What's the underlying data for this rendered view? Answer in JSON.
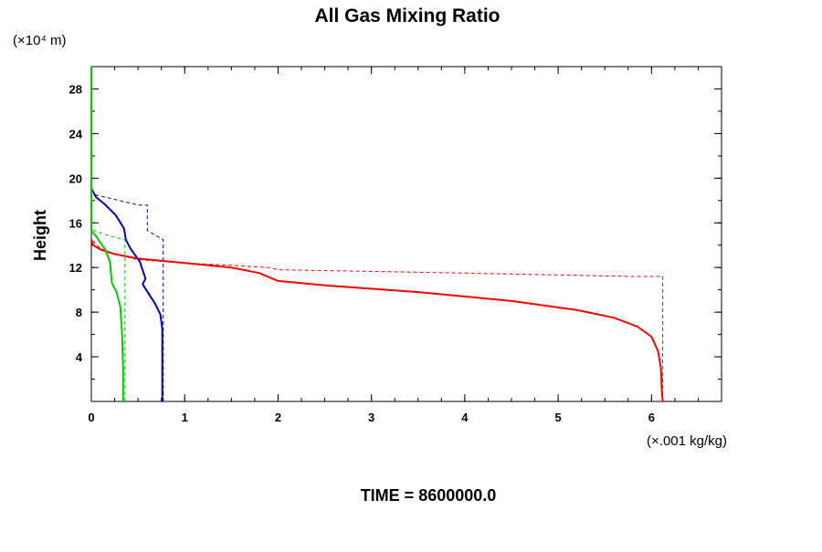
{
  "chart_data": {
    "type": "line",
    "title": "All Gas Mixing Ratio",
    "ylabel": "Height",
    "yunit": "(×10⁴ m)",
    "xunit": "(×.001 kg/kg)",
    "footer": "TIME = 8600000.0",
    "xlim": [
      0,
      6.75
    ],
    "ylim": [
      0,
      30
    ],
    "xticks": [
      0,
      1,
      2,
      3,
      4,
      5,
      6
    ],
    "yticks": [
      4,
      8,
      12,
      16,
      20,
      24,
      28
    ],
    "xtick_labels": [
      "0",
      "1",
      "2",
      "3",
      "4",
      "5",
      "6"
    ],
    "ytick_labels": [
      "4",
      "8",
      "12",
      "16",
      "20",
      "24",
      "28"
    ],
    "x_minor_step": 0.25,
    "y_minor_step": 2,
    "series": [
      {
        "name": "red-solid",
        "color": "#ff0000",
        "style": "solid",
        "points": [
          [
            6.12,
            0
          ],
          [
            6.11,
            1
          ],
          [
            6.1,
            3
          ],
          [
            6.07,
            4.5
          ],
          [
            6.0,
            5.8
          ],
          [
            5.85,
            6.7
          ],
          [
            5.6,
            7.5
          ],
          [
            5.2,
            8.2
          ],
          [
            4.5,
            9.0
          ],
          [
            3.5,
            9.8
          ],
          [
            2.5,
            10.4
          ],
          [
            2.0,
            10.8
          ],
          [
            1.8,
            11.5
          ],
          [
            1.5,
            12.0
          ],
          [
            1.0,
            12.4
          ],
          [
            0.5,
            12.8
          ],
          [
            0.25,
            13.2
          ],
          [
            0.1,
            13.6
          ],
          [
            0.02,
            14.0
          ],
          [
            0,
            14.5
          ]
        ]
      },
      {
        "name": "red-dashed",
        "color": "#ff0000",
        "style": "dashed",
        "points": [
          [
            6.12,
            0
          ],
          [
            6.12,
            11.2
          ],
          [
            5.8,
            11.2
          ],
          [
            4.0,
            11.5
          ],
          [
            2.0,
            11.8
          ],
          [
            1.9,
            12.0
          ],
          [
            1.5,
            12.2
          ],
          [
            1.0,
            12.4
          ],
          [
            0.5,
            12.7
          ],
          [
            0.25,
            13.2
          ],
          [
            0.1,
            13.7
          ],
          [
            0,
            14.5
          ]
        ]
      },
      {
        "name": "blue-solid",
        "color": "#0000cc",
        "style": "solid",
        "points": [
          [
            0.76,
            0
          ],
          [
            0.76,
            6.5
          ],
          [
            0.74,
            7.8
          ],
          [
            0.68,
            8.8
          ],
          [
            0.55,
            10.5
          ],
          [
            0.58,
            11
          ],
          [
            0.52,
            12.5
          ],
          [
            0.42,
            13.7
          ],
          [
            0.37,
            14.5
          ],
          [
            0.35,
            15.5
          ],
          [
            0.26,
            16.7
          ],
          [
            0.14,
            17.7
          ],
          [
            0.05,
            18.3
          ],
          [
            0,
            19.1
          ]
        ]
      },
      {
        "name": "blue-dashed",
        "color": "#0000cc",
        "style": "dashed",
        "points": [
          [
            0.77,
            0
          ],
          [
            0.77,
            14.5
          ],
          [
            0.6,
            15.3
          ],
          [
            0.6,
            17.6
          ],
          [
            0.5,
            17.6
          ],
          [
            0.4,
            17.8
          ],
          [
            0.1,
            18.4
          ],
          [
            0,
            18.6
          ]
        ]
      },
      {
        "name": "green-solid",
        "color": "#00cc00",
        "style": "solid",
        "points": [
          [
            0.34,
            0
          ],
          [
            0.34,
            3
          ],
          [
            0.33,
            6
          ],
          [
            0.31,
            8.5
          ],
          [
            0.27,
            9.8
          ],
          [
            0.22,
            10.6
          ],
          [
            0.2,
            12.5
          ],
          [
            0.15,
            13.6
          ],
          [
            0.1,
            14.2
          ],
          [
            0.05,
            14.8
          ],
          [
            0,
            15.3
          ]
        ]
      },
      {
        "name": "green-dashed",
        "color": "#00cc00",
        "style": "dashed",
        "points": [
          [
            0.36,
            0
          ],
          [
            0.36,
            14.5
          ],
          [
            0.25,
            14.7
          ],
          [
            0.1,
            15.1
          ],
          [
            0,
            15.4
          ]
        ]
      },
      {
        "name": "green-axis",
        "color": "#00cc00",
        "style": "solid",
        "points": [
          [
            0,
            15.3
          ],
          [
            0,
            30
          ]
        ]
      }
    ]
  }
}
